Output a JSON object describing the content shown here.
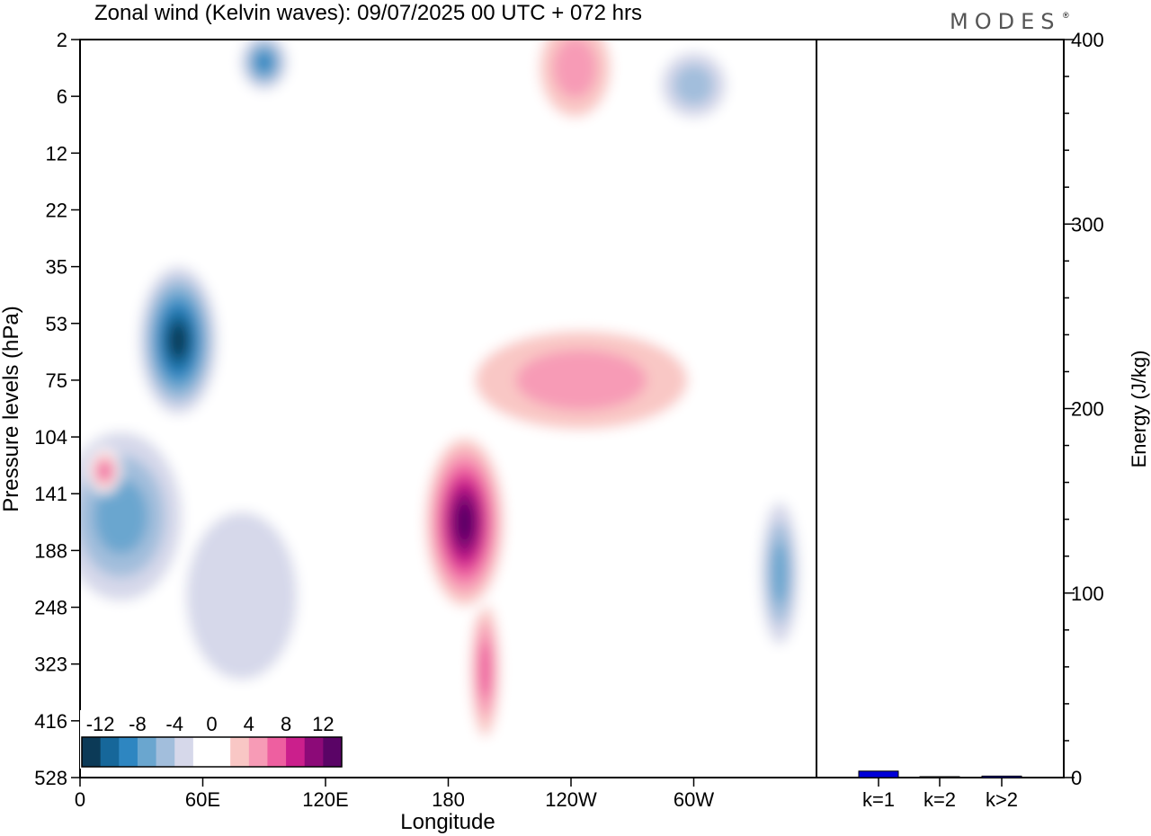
{
  "title": "Zonal wind (Kelvin waves):  09/07/2025  00 UTC  + 072 hrs",
  "logo": "MODES",
  "logo_mark": "®",
  "chart_data": [
    {
      "type": "heatmap",
      "title": "Zonal wind (Kelvin waves):  09/07/2025  00 UTC  + 072 hrs",
      "xlabel": "Longitude",
      "ylabel": "Pressure levels (hPa)",
      "x_ticks": [
        "0",
        "60E",
        "120E",
        "180",
        "120W",
        "60W"
      ],
      "x_tick_values": [
        0,
        60,
        120,
        180,
        240,
        300
      ],
      "xlim": [
        0,
        360
      ],
      "y_ticks": [
        "2",
        "6",
        "12",
        "22",
        "35",
        "53",
        "75",
        "104",
        "141",
        "188",
        "248",
        "323",
        "416",
        "528"
      ],
      "grid": false,
      "colorbar": {
        "labels": [
          "-12",
          "-8",
          "-4",
          "0",
          "4",
          "8",
          "12"
        ],
        "levels": [
          -14,
          -12,
          -10,
          -8,
          -6,
          -4,
          -2,
          0,
          2,
          4,
          6,
          8,
          10,
          12,
          14
        ],
        "colors": [
          "#0c3a57",
          "#16679a",
          "#2e86c1",
          "#6aa6cf",
          "#a2bedc",
          "#d6d8ea",
          "#ffffff",
          "#ffffff",
          "#f9c7c5",
          "#f79bb6",
          "#ee5fa0",
          "#cb1f8c",
          "#8c0a78",
          "#5a0466"
        ],
        "placement": "bottom-left"
      },
      "features": [
        {
          "lon": 48,
          "level": 5.3,
          "rx": 22,
          "ry": 1.5,
          "value": -14
        },
        {
          "lon": 20,
          "level": 8.4,
          "rx": 38,
          "ry": 1.9,
          "value": -8
        },
        {
          "lon": 79,
          "level": 9.8,
          "rx": 44,
          "ry": 2.4,
          "value": -4
        },
        {
          "lon": 342,
          "level": 9.4,
          "rx": 12,
          "ry": 1.6,
          "value": -8
        },
        {
          "lon": 188,
          "level": 8.5,
          "rx": 22,
          "ry": 1.7,
          "value": 14
        },
        {
          "lon": 198,
          "level": 11.1,
          "rx": 9,
          "ry": 1.5,
          "value": 8
        },
        {
          "lon": 245,
          "level": 6.0,
          "rx": 72,
          "ry": 1.2,
          "value": 6
        },
        {
          "lon": 12,
          "level": 7.6,
          "rx": 8,
          "ry": 0.4,
          "value": 8
        },
        {
          "lon": 90,
          "level": 0.4,
          "rx": 14,
          "ry": 0.6,
          "value": -10
        },
        {
          "lon": 300,
          "level": 0.8,
          "rx": 22,
          "ry": 0.8,
          "value": -6
        },
        {
          "lon": 242,
          "level": 0.5,
          "rx": 24,
          "ry": 1.2,
          "value": 6
        }
      ]
    },
    {
      "type": "bar",
      "categories": [
        "k=1",
        "k=2",
        "k>2"
      ],
      "values": [
        3.5,
        0.5,
        0.8
      ],
      "ylabel": "Energy (J/kg)",
      "ylim": [
        0,
        400
      ],
      "y_ticks": [
        "0",
        "100",
        "200",
        "300",
        "400"
      ],
      "y_tick_values": [
        0,
        100,
        200,
        300,
        400
      ],
      "bar_color": "#0000d8"
    }
  ]
}
